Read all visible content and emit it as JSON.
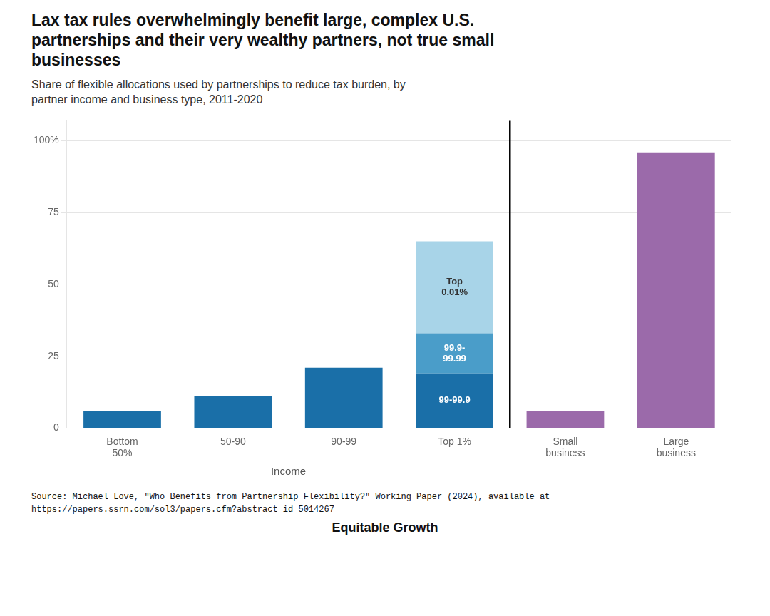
{
  "chart_data": {
    "type": "bar",
    "title": "Lax tax rules overwhelmingly benefit large, complex U.S.\npartnerships and their very wealthy partners, not true small\nbusinesses",
    "subtitle": "Share of flexible allocations used by partnerships to reduce tax burden, by\npartner income and business type, 2011-2020",
    "xlabel": "Income",
    "categories": [
      "Bottom\n50%",
      "50-90",
      "90-99",
      "Top 1%",
      "Small\nbusiness",
      "Large\nbusiness"
    ],
    "series": [
      {
        "color": "#1a6fa8",
        "values": [
          6,
          11,
          21,
          null,
          null,
          null
        ]
      },
      {
        "name": "99-99.9",
        "color": "#1a6fa8",
        "values": [
          null,
          null,
          null,
          19,
          null,
          null
        ]
      },
      {
        "name": "99.9-\n99.99",
        "color": "#4a9dc9",
        "values": [
          null,
          null,
          null,
          14,
          null,
          null
        ]
      },
      {
        "name": "Top\n0.01%",
        "color": "#a8d4e8",
        "values": [
          null,
          null,
          null,
          32,
          null,
          null
        ]
      },
      {
        "color": "#9b6aaa",
        "values": [
          null,
          null,
          null,
          null,
          6,
          96
        ]
      }
    ],
    "stacked": true,
    "ylim": [
      0,
      107
    ],
    "yticks": [
      0,
      25,
      50,
      75,
      {
        "value": 100,
        "label": "100%"
      }
    ],
    "grid": true,
    "source": [
      "Source: Michael Love, \"Who Benefits from Partnership Flexibility?\" Working Paper (2024), available at",
      "https://papers.ssrn.com/sol3/papers.cfm?abstract_id=5014267"
    ],
    "annotations": [
      "Equitable Growth"
    ]
  }
}
